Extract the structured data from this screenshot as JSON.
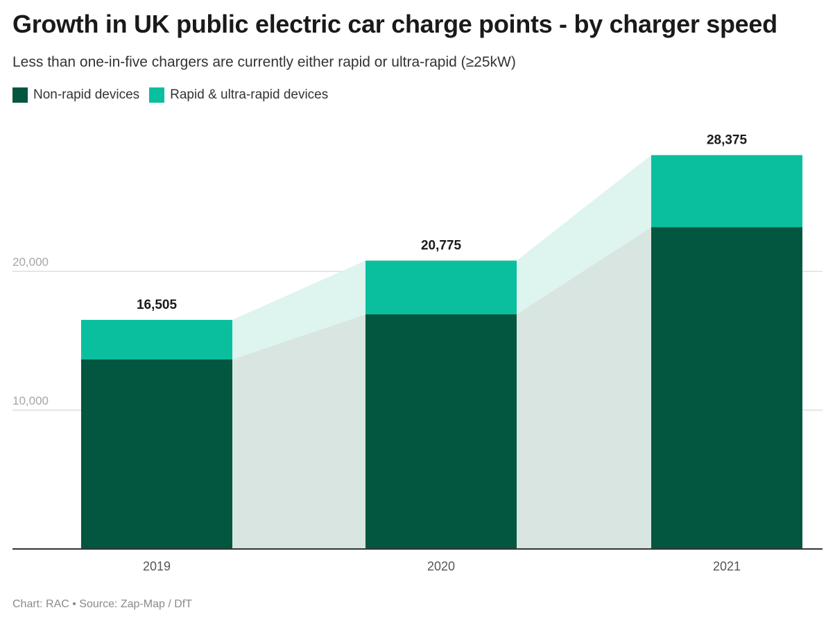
{
  "title": "Growth in UK public electric car charge points - by charger speed",
  "subtitle": "Less than one-in-five chargers are currently either rapid or ultra-rapid (≥25kW)",
  "footer": "Chart: RAC • Source: Zap-Map / DfT",
  "colors": {
    "non_rapid": "#03563F",
    "rapid": "#0ABF9E",
    "non_rapid_band": "#D9E5E1",
    "rapid_band": "#DDF4EF",
    "grid": "#E6E6E6",
    "axis": "#333333"
  },
  "chart_data": {
    "type": "bar",
    "stacked": true,
    "categories": [
      "2019",
      "2020",
      "2021"
    ],
    "series": [
      {
        "name": "Non-rapid devices",
        "values": [
          13650,
          16900,
          23190
        ]
      },
      {
        "name": "Rapid & ultra-rapid devices",
        "values": [
          2855,
          3875,
          5185
        ]
      }
    ],
    "totals": [
      "16,505",
      "20,775",
      "28,375"
    ],
    "total_values": [
      16505,
      20775,
      28375
    ],
    "y_ticks": [
      10000,
      20000
    ],
    "y_tick_labels": [
      "10,000",
      "20,000"
    ],
    "ylim": [
      0,
      30000
    ],
    "grid": true,
    "legend_position": "top-left"
  }
}
